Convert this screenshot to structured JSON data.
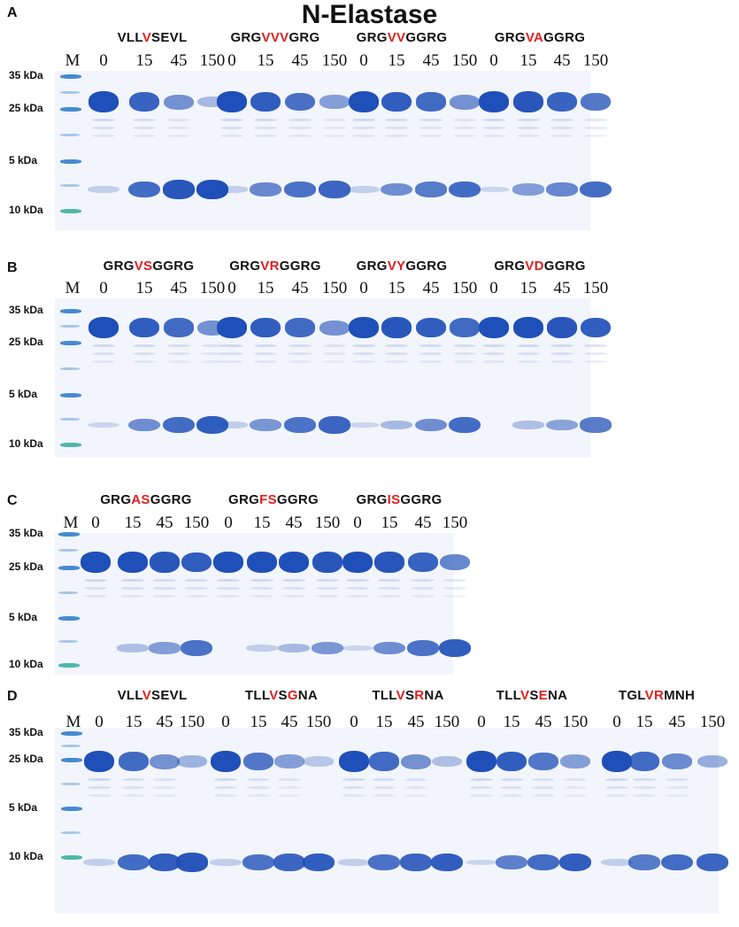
{
  "title": "N-Elastase",
  "colors": {
    "band": "#1f4fb8",
    "ladder": "#1a6fc4",
    "ladder_small": "#26a69a",
    "highlight": "#e02020"
  },
  "marker_label": "M",
  "lanes": [
    "0",
    "15",
    "45",
    "150"
  ],
  "panels": [
    {
      "label": "A",
      "markers": [
        "35 kDa",
        "25 kDa",
        "5 kDa",
        "10 kDa"
      ],
      "peptides": [
        {
          "id": "VLLVSEVL",
          "pre": "VLL",
          "hl": "V",
          "post": "SEVL",
          "product": [
            0.1,
            0.8,
            0.95,
            1.0
          ],
          "substrate": [
            1.0,
            0.85,
            0.5,
            0.2
          ]
        },
        {
          "id": "GRGVVVGRG",
          "pre": "GRG",
          "hl": "VVV",
          "post": "GRG",
          "product": [
            0.1,
            0.6,
            0.75,
            0.85
          ],
          "substrate": [
            1.0,
            0.9,
            0.75,
            0.4
          ]
        },
        {
          "id": "GRGVVGGRG",
          "pre": "GRG",
          "hl": "VV",
          "post": "GGRG",
          "product": [
            0.1,
            0.55,
            0.7,
            0.8
          ],
          "substrate": [
            1.0,
            0.9,
            0.8,
            0.5
          ]
        },
        {
          "id": "GRGVAGGRG",
          "pre": "GRG",
          "hl": "VA",
          "post": "GGRG",
          "product": [
            0.05,
            0.45,
            0.6,
            0.8
          ],
          "substrate": [
            1.0,
            0.95,
            0.85,
            0.7
          ]
        }
      ]
    },
    {
      "label": "B",
      "markers": [
        "35 kDa",
        "25 kDa",
        "5 kDa",
        "10 kDa"
      ],
      "peptides": [
        {
          "id": "GRGVSGGRG",
          "pre": "GRG",
          "hl": "VS",
          "post": "GGRG",
          "product": [
            0.05,
            0.55,
            0.8,
            0.9
          ],
          "substrate": [
            1.0,
            0.9,
            0.8,
            0.5
          ]
        },
        {
          "id": "GRGVRGGRG",
          "pre": "GRG",
          "hl": "VR",
          "post": "GGRG",
          "product": [
            0.1,
            0.5,
            0.75,
            0.85
          ],
          "substrate": [
            1.0,
            0.9,
            0.8,
            0.5
          ]
        },
        {
          "id": "GRGVYGGRG",
          "pre": "GRG",
          "hl": "VY",
          "post": "GGRG",
          "product": [
            0.05,
            0.25,
            0.55,
            0.8
          ],
          "substrate": [
            1.0,
            0.95,
            0.9,
            0.8
          ]
        },
        {
          "id": "GRGVDGGRG",
          "pre": "GRG",
          "hl": "VD",
          "post": "GGRG",
          "product": [
            0.0,
            0.2,
            0.4,
            0.7
          ],
          "substrate": [
            1.0,
            1.0,
            0.95,
            0.9
          ]
        }
      ]
    },
    {
      "label": "C",
      "markers": [
        "35 kDa",
        "25 kDa",
        "5 kDa",
        "10 kDa"
      ],
      "peptides": [
        {
          "id": "GRGASGGRG",
          "pre": "GRG",
          "hl": "AS",
          "post": "GGRG",
          "product": [
            0.0,
            0.2,
            0.45,
            0.75
          ],
          "substrate": [
            1.0,
            1.0,
            0.95,
            0.9
          ]
        },
        {
          "id": "GRGFSGGRG",
          "pre": "GRG",
          "hl": "FS",
          "post": "GGRG",
          "product": [
            0.0,
            0.1,
            0.25,
            0.5
          ],
          "substrate": [
            1.0,
            1.0,
            1.0,
            0.95
          ]
        },
        {
          "id": "GRGISGGRG",
          "pre": "GRG",
          "hl": "IS",
          "post": "GGRG",
          "product": [
            0.05,
            0.55,
            0.75,
            0.9
          ],
          "substrate": [
            1.0,
            0.95,
            0.85,
            0.6
          ]
        }
      ]
    },
    {
      "label": "D",
      "markers": [
        "35 kDa",
        "25 kDa",
        "5 kDa",
        "10 kDa"
      ],
      "peptides": [
        {
          "id": "VLLVSEVL",
          "pre": "VLL",
          "hl": "V",
          "post": "SEVL",
          "product": [
            0.1,
            0.8,
            0.9,
            0.95
          ],
          "substrate": [
            1.0,
            0.8,
            0.5,
            0.25
          ]
        },
        {
          "id": "TLLVSGNA",
          "pre": "TLL",
          "hl": "V",
          "mid": "S",
          "hl2": "G",
          "post": "NA",
          "product": [
            0.1,
            0.75,
            0.85,
            0.9
          ],
          "substrate": [
            1.0,
            0.7,
            0.4,
            0.1
          ]
        },
        {
          "id": "TLLVSRNA",
          "pre": "TLL",
          "hl": "V",
          "mid": "S",
          "hl2": "R",
          "post": "NA",
          "product": [
            0.1,
            0.75,
            0.85,
            0.9
          ],
          "substrate": [
            1.0,
            0.8,
            0.5,
            0.15
          ]
        },
        {
          "id": "TLLVSENA",
          "pre": "TLL",
          "hl": "V",
          "mid": "S",
          "hl2": "E",
          "post": "NA",
          "product": [
            0.05,
            0.65,
            0.8,
            0.9
          ],
          "substrate": [
            1.0,
            0.9,
            0.7,
            0.4
          ]
        },
        {
          "id": "TGLVRMNH",
          "pre": "TGL",
          "hl": "VR",
          "post": "MNH",
          "product": [
            0.1,
            0.7,
            0.8,
            0.85
          ],
          "substrate": [
            1.0,
            0.8,
            0.55,
            0.3
          ]
        }
      ]
    }
  ]
}
